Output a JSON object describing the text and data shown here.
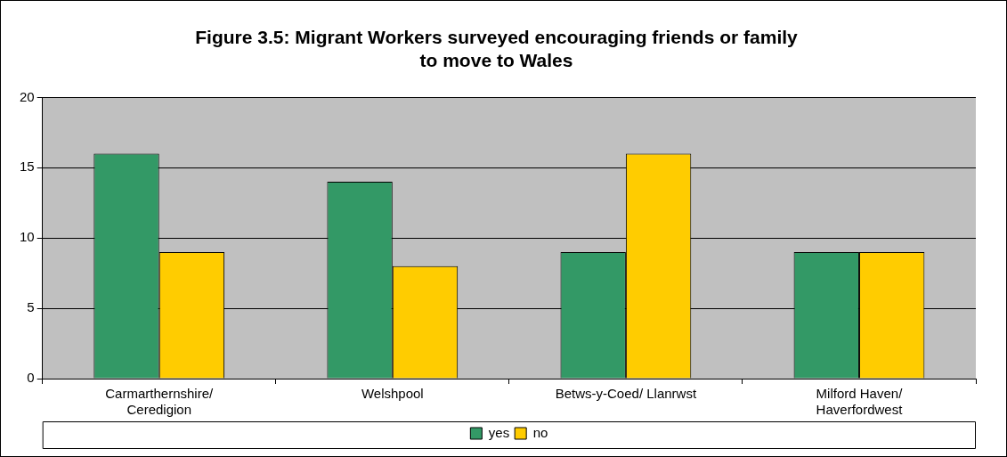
{
  "chart_data": {
    "type": "bar",
    "title": "Figure 3.5: Migrant Workers surveyed encouraging friends or family to move to Wales",
    "categories": [
      "Carmarthernshire/ Ceredigion",
      "Welshpool",
      "Betws-y-Coed/ Llanrwst",
      "Milford Haven/ Haverfordwest"
    ],
    "series": [
      {
        "name": "yes",
        "color": "#339966",
        "values": [
          16,
          14,
          9,
          9
        ]
      },
      {
        "name": "no",
        "color": "#ffcc00",
        "values": [
          9,
          8,
          16,
          9
        ]
      }
    ],
    "ylim": [
      0,
      20
    ],
    "yticks": [
      0,
      5,
      10,
      15,
      20
    ],
    "grid": "y",
    "legend": "bottom"
  }
}
